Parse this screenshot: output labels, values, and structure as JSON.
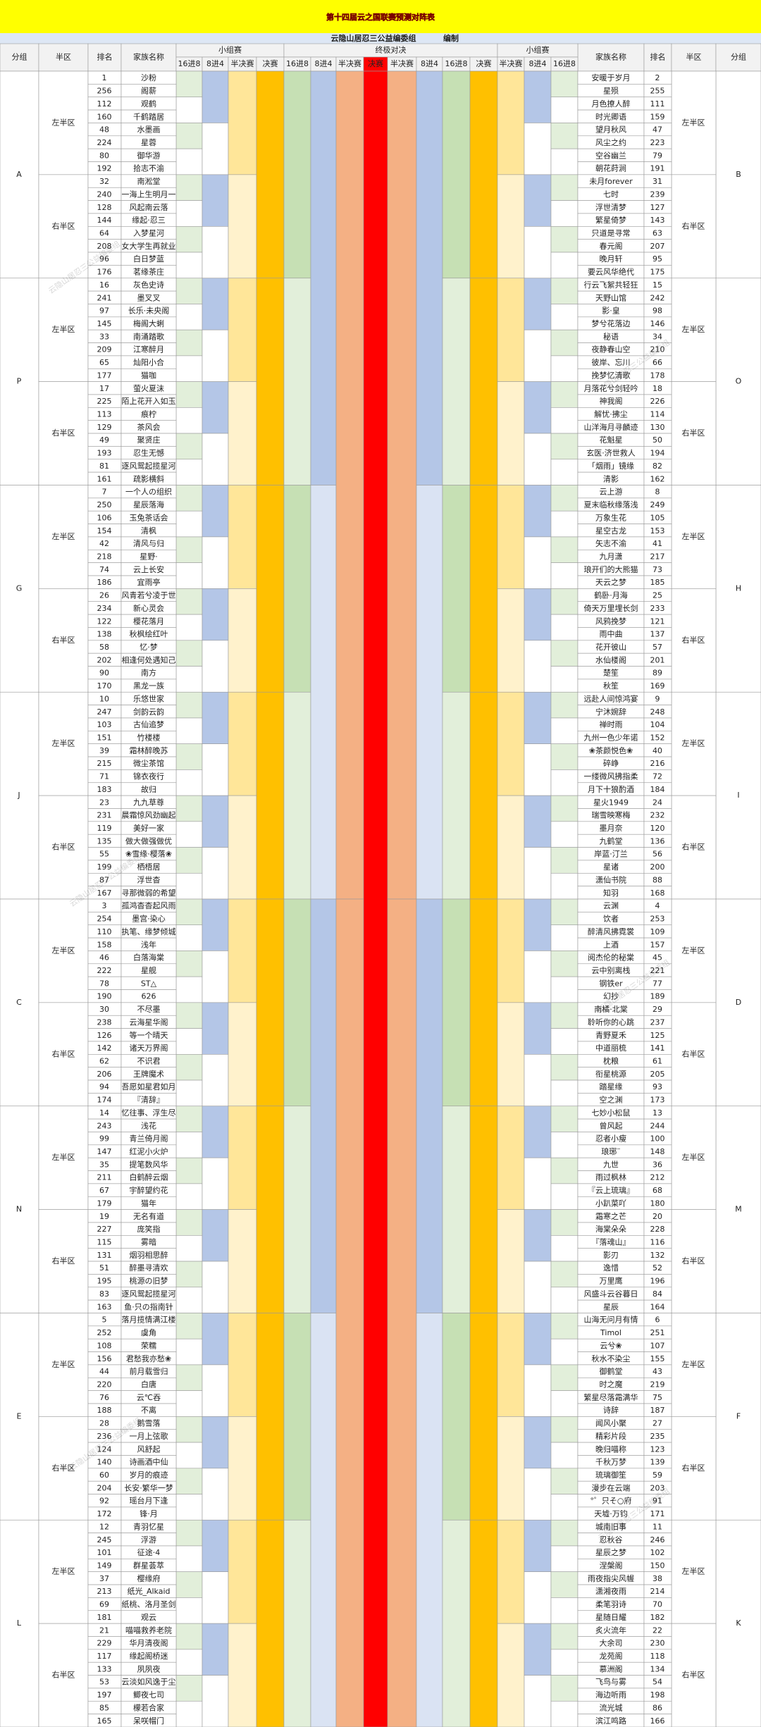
{
  "header": {
    "title": "第十四届云之国联赛预测对阵表",
    "subtitle": "云隐山居忍三公益编委组",
    "subtitle_suffix": "编制"
  },
  "watermark": "云隐山居忍三公益编委组",
  "columns": {
    "group": "分组",
    "half": "半区",
    "rank": "排名",
    "family": "家族名称",
    "group_stage": "小组赛",
    "final_stage": "终极对决",
    "rounds": [
      "16进8",
      "8进4",
      "半决赛",
      "决赛",
      "16进8",
      "8进4",
      "半决赛",
      "决赛",
      "半决赛",
      "8进4",
      "16进8",
      "决赛",
      "半决赛",
      "8进4",
      "16进8"
    ]
  },
  "halves": [
    "左半区",
    "右半区"
  ],
  "sections": [
    {
      "left_group": "A",
      "right_group": "B",
      "left": [
        [
          1,
          "沙粉"
        ],
        [
          256,
          "阁薪"
        ],
        [
          112,
          "观鹤"
        ],
        [
          160,
          "千鹤踏居"
        ],
        [
          48,
          "水墨画"
        ],
        [
          224,
          "星蓉"
        ],
        [
          80,
          "御华游"
        ],
        [
          192,
          "拾志不渝"
        ],
        [
          32,
          "南淞堂"
        ],
        [
          240,
          "一海上生明月一"
        ],
        [
          128,
          "风起南云落"
        ],
        [
          144,
          "缘起·忍三"
        ],
        [
          64,
          "入梦星河"
        ],
        [
          208,
          "女大学生再就业"
        ],
        [
          96,
          "白日梦蓝"
        ],
        [
          176,
          "茗缘茶庄"
        ]
      ],
      "right": [
        [
          "安暖于岁月",
          2
        ],
        [
          "星殒",
          255
        ],
        [
          "月色撩人醉",
          111
        ],
        [
          "时光卿语",
          159
        ],
        [
          "望月秋风",
          47
        ],
        [
          "风尘之约",
          223
        ],
        [
          "空谷幽兰",
          79
        ],
        [
          "朝花莳涧",
          191
        ],
        [
          "未月forever",
          31
        ],
        [
          "七时",
          239
        ],
        [
          "浮世清梦",
          127
        ],
        [
          "繁星倚梦",
          143
        ],
        [
          "只道是寻常",
          63
        ],
        [
          "春元阁",
          207
        ],
        [
          "晚月轩",
          95
        ],
        [
          "要云风华绝代",
          175
        ]
      ]
    },
    {
      "left_group": "P",
      "right_group": "O",
      "left": [
        [
          16,
          "灰色史诗"
        ],
        [
          241,
          "墨叉叉"
        ],
        [
          97,
          "长乐·未央阁"
        ],
        [
          145,
          "梅阁大蜊"
        ],
        [
          33,
          "南涌踏歌"
        ],
        [
          209,
          "江寒醉月"
        ],
        [
          65,
          "灿阳小合"
        ],
        [
          177,
          "猫咖"
        ],
        [
          17,
          "萤火夏沫"
        ],
        [
          225,
          "陌上花开入如玉"
        ],
        [
          113,
          "痕柠"
        ],
        [
          129,
          "茶风会"
        ],
        [
          49,
          "聚贤庄"
        ],
        [
          193,
          "忍生无憾"
        ],
        [
          81,
          "逐风鸳起揽星河"
        ],
        [
          161,
          "疏影横斜"
        ]
      ],
      "right": [
        [
          "行云飞絮共轻狂",
          15
        ],
        [
          "天野山馆",
          242
        ],
        [
          "影·皇",
          98
        ],
        [
          "梦兮花落边",
          146
        ],
        [
          "秘语",
          34
        ],
        [
          "夜静春山空",
          210
        ],
        [
          "彼岸、忘川",
          66
        ],
        [
          "挽梦忆清歌",
          178
        ],
        [
          "月落花兮剑轻吟",
          18
        ],
        [
          "神我阁",
          226
        ],
        [
          "解忧·拂尘",
          114
        ],
        [
          "山洋海月寻麟迹",
          130
        ],
        [
          "花魁星",
          50
        ],
        [
          "玄医·济世救人",
          194
        ],
        [
          "「烟雨」镜缘",
          82
        ],
        [
          "清影",
          162
        ]
      ]
    },
    {
      "left_group": "G",
      "right_group": "H",
      "left": [
        [
          7,
          "一个人の组织"
        ],
        [
          250,
          "星辰落海"
        ],
        [
          106,
          "玉兔茶话会"
        ],
        [
          154,
          "清枫"
        ],
        [
          42,
          "清风与归"
        ],
        [
          218,
          "星野·"
        ],
        [
          74,
          "云上长安"
        ],
        [
          186,
          "宜雨亭"
        ],
        [
          26,
          "风青若兮凌于世"
        ],
        [
          234,
          "新心灵会"
        ],
        [
          122,
          "樱花落月"
        ],
        [
          138,
          "秋枫绘红叶"
        ],
        [
          58,
          "忆·梦"
        ],
        [
          202,
          "相逢何处遇知己"
        ],
        [
          90,
          "南方"
        ],
        [
          170,
          "黑龙一族"
        ]
      ],
      "right": [
        [
          "云上游",
          8
        ],
        [
          "夏末临秋缘落浅",
          249
        ],
        [
          "万象生花",
          105
        ],
        [
          "星空古龙",
          153
        ],
        [
          "矢志不渝",
          41
        ],
        [
          "九月潇",
          217
        ],
        [
          "琅开们的大熊猫",
          73
        ],
        [
          "天云之梦",
          185
        ],
        [
          "鹤卧·月海",
          25
        ],
        [
          "倚天万里埋长剑",
          233
        ],
        [
          "风鸦挽梦",
          121
        ],
        [
          "雨中曲",
          137
        ],
        [
          "花开彼山",
          57
        ],
        [
          "水仙楼阁",
          201
        ],
        [
          "楚笙",
          89
        ],
        [
          "秋笙",
          169
        ]
      ]
    },
    {
      "left_group": "J",
      "right_group": "I",
      "left": [
        [
          10,
          "乐悠世家"
        ],
        [
          247,
          "剑韵云韵"
        ],
        [
          103,
          "古仙追梦"
        ],
        [
          151,
          "竹楼楼"
        ],
        [
          39,
          "霜林醉晚苏"
        ],
        [
          215,
          "微尘茶馆"
        ],
        [
          71,
          "锦衣夜行"
        ],
        [
          183,
          "故归"
        ],
        [
          23,
          "九九草尊"
        ],
        [
          231,
          "晨霜惊风劲幽起"
        ],
        [
          119,
          "美好一家"
        ],
        [
          135,
          "做大做强做优"
        ],
        [
          55,
          "❀雪缘·樱落❀"
        ],
        [
          199,
          "栖梧居"
        ],
        [
          87,
          "浮世杳"
        ],
        [
          167,
          "寻那微弱的希望"
        ]
      ],
      "right": [
        [
          "远赴人间惊鸿宴",
          9
        ],
        [
          "宁沐婉辞",
          248
        ],
        [
          "禅时雨",
          104
        ],
        [
          "九州一色少年诺",
          152
        ],
        [
          "❀茶颜悦色❀",
          40
        ],
        [
          "碎峥",
          216
        ],
        [
          "一缕微风拂指柔",
          72
        ],
        [
          "月下十狼酌酒",
          184
        ],
        [
          "星火1949",
          24
        ],
        [
          "瑞雪映寒梅",
          232
        ],
        [
          "墨月奈",
          120
        ],
        [
          "九鹤堂",
          136
        ],
        [
          "岸蓝·汀兰",
          56
        ],
        [
          "星诸",
          200
        ],
        [
          "潇仙书院",
          88
        ],
        [
          "知羽",
          168
        ]
      ]
    },
    {
      "left_group": "C",
      "right_group": "D",
      "left": [
        [
          3,
          "孤鸿杳杳起风雨"
        ],
        [
          254,
          "墨宫·染心"
        ],
        [
          110,
          "执笔、缘梦倾城"
        ],
        [
          158,
          "浅年"
        ],
        [
          46,
          "白落海棠"
        ],
        [
          222,
          "星舰"
        ],
        [
          78,
          "ST△"
        ],
        [
          190,
          "626"
        ],
        [
          30,
          "不尽墨"
        ],
        [
          238,
          "云海星华阁"
        ],
        [
          126,
          "等一个晴天"
        ],
        [
          142,
          "诸天万界阁"
        ],
        [
          62,
          "不识君"
        ],
        [
          206,
          "王牌魔术"
        ],
        [
          94,
          "吾愿如星君如月"
        ],
        [
          174,
          "『清辞』"
        ]
      ],
      "right": [
        [
          "云渊",
          4
        ],
        [
          "饮者",
          253
        ],
        [
          "醉清风拂霓裳",
          109
        ],
        [
          "上酒",
          157
        ],
        [
          "阅杰伦的秘棠",
          45
        ],
        [
          "云中别离栈",
          221
        ],
        [
          "钢铁er",
          77
        ],
        [
          "幻抄",
          189
        ],
        [
          "南橘·北棠",
          29
        ],
        [
          "聆听你的心跳",
          237
        ],
        [
          "青野夏禾",
          125
        ],
        [
          "中道丽梳",
          141
        ],
        [
          "枕粮",
          61
        ],
        [
          "衔星桃源",
          205
        ],
        [
          "踏星缘",
          93
        ],
        [
          "空之渊",
          173
        ]
      ]
    },
    {
      "left_group": "N",
      "right_group": "M",
      "left": [
        [
          14,
          "忆往事、浮生尽"
        ],
        [
          243,
          "浅花"
        ],
        [
          99,
          "青兰倚月阁"
        ],
        [
          147,
          "红泥小火炉"
        ],
        [
          35,
          "提笔数风华"
        ],
        [
          211,
          "白鹤醉云烟"
        ],
        [
          67,
          "宇醉望约花"
        ],
        [
          179,
          "猫年"
        ],
        [
          19,
          "无名有道"
        ],
        [
          227,
          "庞笑指"
        ],
        [
          115,
          "雾暗"
        ],
        [
          131,
          "烟羽相思醉"
        ],
        [
          51,
          "醉墨寻清欢"
        ],
        [
          195,
          "桃源の旧梦"
        ],
        [
          83,
          "逐风鸳起揽星河"
        ],
        [
          163,
          "鱼·只の指南针"
        ]
      ],
      "right": [
        [
          "七妙小松鼠",
          13
        ],
        [
          "曾风起",
          244
        ],
        [
          "忍者小瘦",
          100
        ],
        [
          "琅琊¨",
          148
        ],
        [
          "九世",
          36
        ],
        [
          "雨过枫林",
          212
        ],
        [
          "『云上琉璃』",
          68
        ],
        [
          "小趴菜吖",
          180
        ],
        [
          "霜寒之芒",
          20
        ],
        [
          "海棠朵朵",
          228
        ],
        [
          "『落魂山』",
          116
        ],
        [
          "影刃",
          132
        ],
        [
          "逸惜",
          52
        ],
        [
          "万里鹰",
          196
        ],
        [
          "风盛斗云谷暮日",
          84
        ],
        [
          "星辰",
          164
        ]
      ]
    },
    {
      "left_group": "E",
      "right_group": "F",
      "left": [
        [
          5,
          "落月揽情满江楼"
        ],
        [
          252,
          "虞角"
        ],
        [
          108,
          "荣糯"
        ],
        [
          156,
          "君愁我亦愁❀"
        ],
        [
          44,
          "前月载雪归"
        ],
        [
          220,
          "白唐"
        ],
        [
          76,
          "云℃吞"
        ],
        [
          188,
          "不离"
        ],
        [
          28,
          "鹅雪落"
        ],
        [
          236,
          "一月上弦歌"
        ],
        [
          124,
          "风舒起"
        ],
        [
          140,
          "诗画酒中仙"
        ],
        [
          60,
          "岁月的痕迹"
        ],
        [
          204,
          "长安·繁华一梦"
        ],
        [
          92,
          "瑶台月下逢"
        ],
        [
          172,
          "锋·月"
        ]
      ],
      "right": [
        [
          "山海无问月有情",
          6
        ],
        [
          "Timol",
          251
        ],
        [
          "云兮❀",
          107
        ],
        [
          "秋水不染尘",
          155
        ],
        [
          "御鹤堂",
          43
        ],
        [
          "时之魔",
          219
        ],
        [
          "繁星尽落霜满华",
          75
        ],
        [
          "诗辞",
          187
        ],
        [
          "闻风小聚",
          27
        ],
        [
          "精彩片段",
          235
        ],
        [
          "晚归喵称",
          123
        ],
        [
          "千秋万梦",
          139
        ],
        [
          "琉璃御笙",
          59
        ],
        [
          "漫步在云端",
          203
        ],
        [
          "°゜只そ○府",
          91
        ],
        [
          "天墟·万钧",
          171
        ]
      ]
    },
    {
      "left_group": "L",
      "right_group": "K",
      "left": [
        [
          12,
          "青羽忆星"
        ],
        [
          245,
          "浮游"
        ],
        [
          101,
          "征途·4"
        ],
        [
          149,
          "群星荟萃"
        ],
        [
          37,
          "樱缘府"
        ],
        [
          213,
          "纸光_Alkaid"
        ],
        [
          69,
          "纸桃、洛月圣剑"
        ],
        [
          181,
          "观云"
        ],
        [
          21,
          "喵喵救养老院"
        ],
        [
          229,
          "华月清夜阁"
        ],
        [
          117,
          "缘起阁桥迷"
        ],
        [
          133,
          "夙夙夜"
        ],
        [
          53,
          "云淡如风逸于尘"
        ],
        [
          197,
          "鲫夜七司"
        ],
        [
          85,
          "檬若合家"
        ],
        [
          165,
          "呆咲帽门"
        ]
      ],
      "right": [
        [
          "城南旧事",
          11
        ],
        [
          "忍秋谷",
          246
        ],
        [
          "星辰之梦",
          102
        ],
        [
          "涅槃阁",
          150
        ],
        [
          "雨夜指尖风幄",
          38
        ],
        [
          "潇湘夜雨",
          214
        ],
        [
          "柔笔羽诗",
          70
        ],
        [
          "星随日耀",
          182
        ],
        [
          "炙火流年",
          22
        ],
        [
          "大余司",
          230
        ],
        [
          "龙苑阁",
          118
        ],
        [
          "慕洲阁",
          134
        ],
        [
          "飞鸟与雾",
          54
        ],
        [
          "海边听雨",
          198
        ],
        [
          "流光城",
          86
        ],
        [
          "滨江鸣路",
          166
        ]
      ]
    }
  ]
}
